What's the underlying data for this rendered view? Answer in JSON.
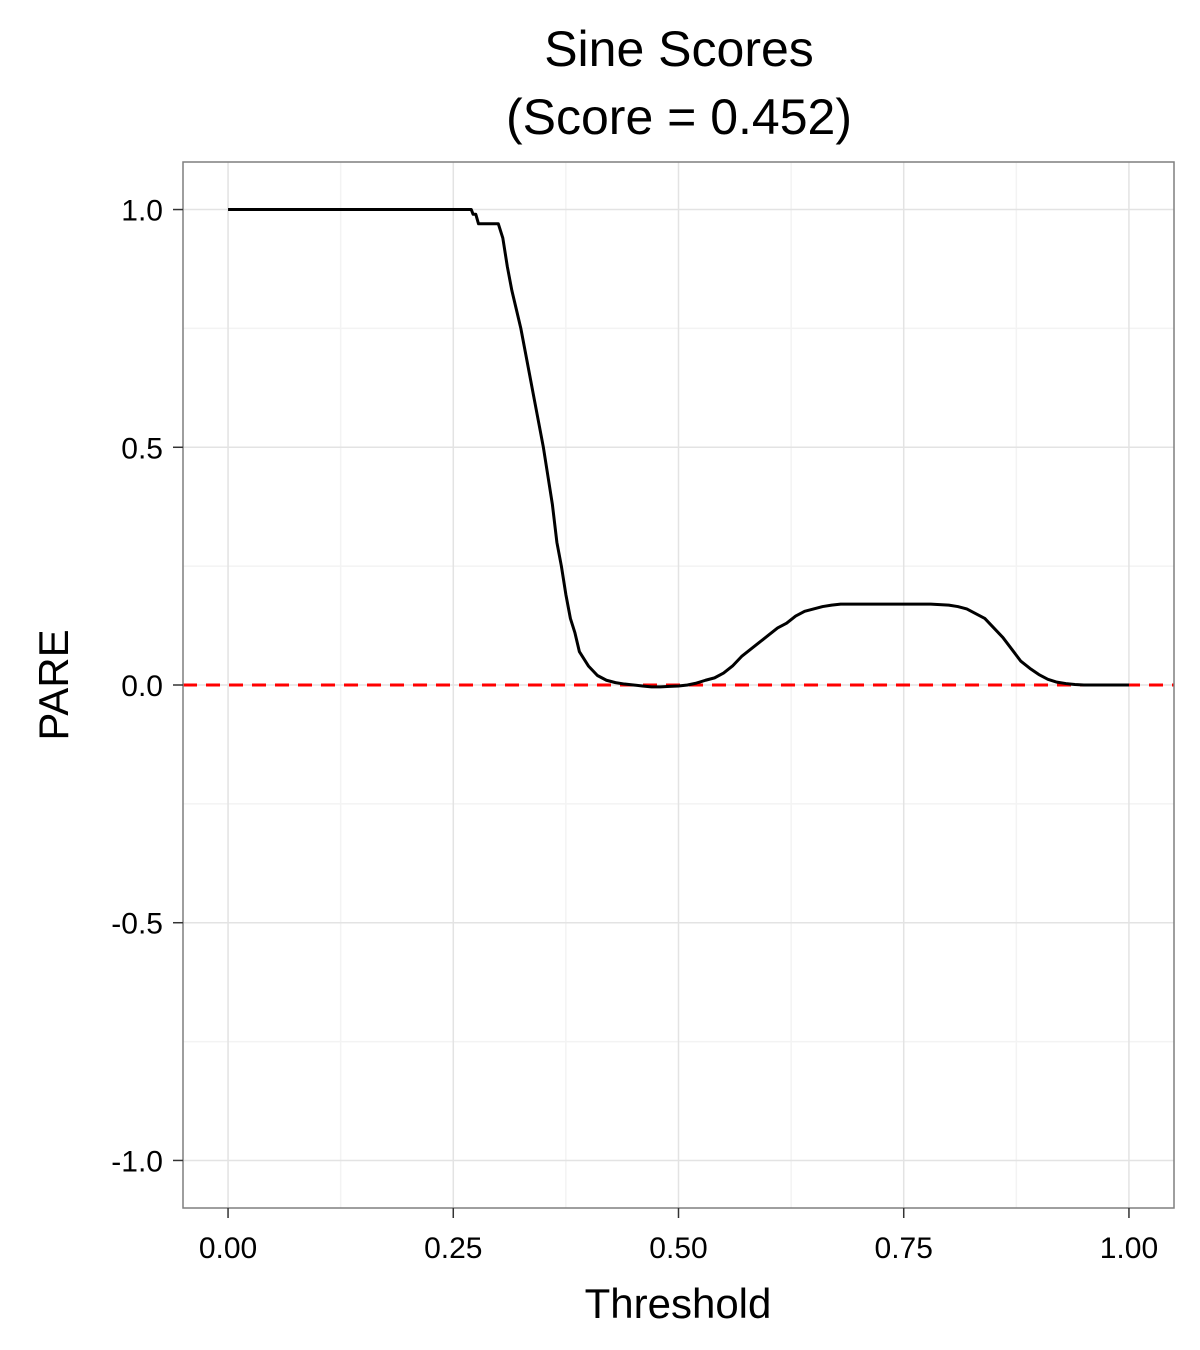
{
  "chart_data": {
    "type": "line",
    "title": "Sine Scores",
    "subtitle": "(Score = 0.452)",
    "xlabel": "Threshold",
    "ylabel": "PARE",
    "xlim": [
      -0.05,
      1.05
    ],
    "ylim": [
      -1.1,
      1.1
    ],
    "x_ticks": [
      0.0,
      0.25,
      0.5,
      0.75,
      1.0
    ],
    "x_tick_labels": [
      "0.00",
      "0.25",
      "0.50",
      "0.75",
      "1.00"
    ],
    "y_ticks": [
      -1.0,
      -0.5,
      0.0,
      0.5,
      1.0
    ],
    "y_tick_labels": [
      "-1.0",
      "-0.5",
      "0.0",
      "0.5",
      "1.0"
    ],
    "grid": true,
    "reference_line": {
      "y": 0.0,
      "style": "dashed",
      "color": "#ff0000"
    },
    "line_color": "#000000",
    "series": [
      {
        "x": [
          0.0,
          0.05,
          0.1,
          0.15,
          0.2,
          0.25,
          0.27,
          0.272,
          0.275,
          0.278,
          0.29,
          0.3,
          0.305,
          0.31,
          0.315,
          0.32,
          0.325,
          0.33,
          0.335,
          0.34,
          0.345,
          0.35,
          0.355,
          0.36,
          0.365,
          0.37,
          0.375,
          0.38,
          0.385,
          0.39,
          0.4,
          0.41,
          0.42,
          0.43,
          0.44,
          0.45,
          0.46,
          0.47,
          0.48,
          0.49,
          0.5,
          0.51,
          0.52,
          0.53,
          0.54,
          0.55,
          0.56,
          0.57,
          0.58,
          0.59,
          0.6,
          0.61,
          0.62,
          0.63,
          0.64,
          0.65,
          0.66,
          0.67,
          0.68,
          0.69,
          0.7,
          0.72,
          0.74,
          0.76,
          0.78,
          0.8,
          0.81,
          0.82,
          0.83,
          0.84,
          0.85,
          0.86,
          0.87,
          0.88,
          0.89,
          0.9,
          0.91,
          0.92,
          0.93,
          0.94,
          0.95,
          0.96,
          0.97,
          0.98,
          0.99,
          1.0
        ],
        "y": [
          1.0,
          1.0,
          1.0,
          1.0,
          1.0,
          1.0,
          1.0,
          0.99,
          0.99,
          0.97,
          0.97,
          0.97,
          0.94,
          0.88,
          0.83,
          0.79,
          0.75,
          0.7,
          0.65,
          0.6,
          0.55,
          0.5,
          0.44,
          0.38,
          0.3,
          0.25,
          0.19,
          0.14,
          0.11,
          0.07,
          0.04,
          0.02,
          0.01,
          0.005,
          0.002,
          0.0,
          -0.002,
          -0.004,
          -0.004,
          -0.003,
          -0.002,
          0.0,
          0.004,
          0.01,
          0.015,
          0.025,
          0.04,
          0.06,
          0.075,
          0.09,
          0.105,
          0.12,
          0.13,
          0.145,
          0.155,
          0.16,
          0.165,
          0.168,
          0.17,
          0.17,
          0.17,
          0.17,
          0.17,
          0.17,
          0.17,
          0.168,
          0.165,
          0.16,
          0.15,
          0.14,
          0.12,
          0.1,
          0.075,
          0.05,
          0.035,
          0.022,
          0.012,
          0.006,
          0.003,
          0.001,
          0.0,
          0.0,
          0.0,
          0.0,
          0.0,
          0.0
        ]
      }
    ]
  }
}
